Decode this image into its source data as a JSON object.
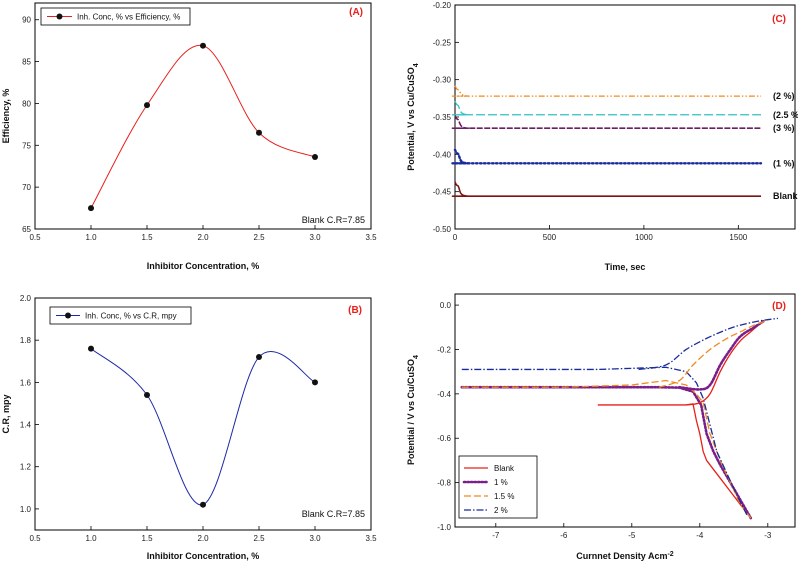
{
  "chart_data": [
    {
      "id": "A",
      "type": "line",
      "panel_label": "(A)",
      "xlabel": "Inhibitor Concentration, %",
      "ylabel": "Efficiency, %",
      "xlim": [
        0.5,
        3.5
      ],
      "ylim": [
        65,
        92
      ],
      "xticks": [
        0.5,
        1.0,
        1.5,
        2.0,
        2.5,
        3.0,
        3.5
      ],
      "xtick_labels": [
        "0.5",
        "1.0",
        "1.5",
        "2.0",
        "2.5",
        "3.0",
        "3.5"
      ],
      "yticks": [
        65,
        70,
        75,
        80,
        85,
        90
      ],
      "ytick_labels": [
        "65",
        "70",
        "75",
        "80",
        "85",
        "90"
      ],
      "series": [
        {
          "name": "Inh. Conc, % vs Efficiency, %",
          "color": "#e8201b",
          "x": [
            1.0,
            1.5,
            2.0,
            2.5,
            3.0
          ],
          "y": [
            67.5,
            79.8,
            86.9,
            76.5,
            73.6
          ]
        }
      ],
      "annotation": "Blank C.R=7.85"
    },
    {
      "id": "B",
      "type": "line",
      "panel_label": "(B)",
      "xlabel": "Inhibitor Concentration, %",
      "ylabel": "C.R, mpy",
      "xlim": [
        0.5,
        3.5
      ],
      "ylim": [
        0.9,
        2.0
      ],
      "xticks": [
        0.5,
        1.0,
        1.5,
        2.0,
        2.5,
        3.0,
        3.5
      ],
      "xtick_labels": [
        "0.5",
        "1.0",
        "1.5",
        "2.0",
        "2.5",
        "3.0",
        "3.5"
      ],
      "yticks": [
        1.0,
        1.2,
        1.4,
        1.6,
        1.8,
        2.0
      ],
      "ytick_labels": [
        "1.0",
        "1.2",
        "1.4",
        "1.6",
        "1.8",
        "2.0"
      ],
      "series": [
        {
          "name": "Inh. Conc, % vs C.R, mpy",
          "color": "#1c2aa6",
          "x": [
            1.0,
            1.5,
            2.0,
            2.5,
            3.0
          ],
          "y": [
            1.76,
            1.54,
            1.02,
            1.72,
            1.6
          ]
        }
      ],
      "annotation": "Blank C.R=7.85"
    },
    {
      "id": "C",
      "type": "line",
      "panel_label": "(C)",
      "xlabel": "Time, sec",
      "ylabel_pre": "Potential, V vs Cu/CuSO",
      "ylabel_sub": "4",
      "xlim": [
        0,
        1800
      ],
      "ylim": [
        -0.5,
        -0.2
      ],
      "xticks": [
        0,
        500,
        1000,
        1500
      ],
      "xtick_labels": [
        "0",
        "500",
        "1000",
        "1500"
      ],
      "yticks": [
        -0.5,
        -0.45,
        -0.4,
        -0.35,
        -0.3,
        -0.25,
        -0.2
      ],
      "ytick_labels": [
        "-0.50",
        "-0.45",
        "-0.40",
        "-0.35",
        "-0.30",
        "-0.25",
        "-0.20"
      ],
      "series": [
        {
          "name": "(2 %)",
          "color": "#f08a1c",
          "dash": "6,2,1.5,2,1.5,2",
          "width": 1.3,
          "x_end": 1620,
          "start": -0.312,
          "steady": -0.322
        },
        {
          "name": "(2.5 %)",
          "color": "#2ec3c3",
          "dash": "9,3",
          "width": 1.3,
          "x_end": 1620,
          "start": -0.333,
          "steady": -0.347
        },
        {
          "name": "(3 %)",
          "color": "#6b1f63",
          "dash": "6,1.5",
          "width": 1.6,
          "x_end": 1620,
          "start": -0.352,
          "steady": -0.365
        },
        {
          "name": "(1 %)",
          "color": "#1a2b9c",
          "dash": "1.6,2.4",
          "width": 2.4,
          "x_end": 1620,
          "start": -0.398,
          "steady": -0.412
        },
        {
          "name": "Blank",
          "color": "#7a1515",
          "dash": "",
          "width": 1.6,
          "x_end": 1620,
          "start": -0.441,
          "steady": -0.456
        }
      ]
    },
    {
      "id": "D",
      "type": "line",
      "panel_label": "(D)",
      "xlabel_pre": "Curnnet Density Acm",
      "xlabel_sup": "-2",
      "ylabel_pre": "Potential / V vs Cu/CuSO",
      "ylabel_sub": "4",
      "xlim": [
        -7.6,
        -2.6
      ],
      "ylim": [
        -1.0,
        0.05
      ],
      "xticks": [
        -7,
        -6,
        -5,
        -4,
        -3
      ],
      "xtick_labels": [
        "-7",
        "-6",
        "-5",
        "-4",
        "-3"
      ],
      "yticks": [
        -1.0,
        -0.8,
        -0.6,
        -0.4,
        -0.2,
        0.0
      ],
      "ytick_labels": [
        "-1.0",
        "-0.8",
        "-0.6",
        "-0.4",
        "-0.2",
        "0.0"
      ],
      "series": [
        {
          "name": "Blank",
          "color": "#e8201b",
          "dash": "",
          "width": 1.3,
          "x": [
            -5.5,
            -4.5,
            -4.2,
            -4.1,
            -4.05,
            -4.0,
            -3.95,
            -3.9,
            -3.8,
            -3.7,
            -3.55,
            -3.4,
            -3.25
          ],
          "y": [
            -0.45,
            -0.45,
            -0.45,
            -0.445,
            -0.52,
            -0.58,
            -0.66,
            -0.7,
            -0.74,
            -0.78,
            -0.84,
            -0.9,
            -0.96
          ]
        },
        {
          "name": "1 %",
          "color": "#7a1f8a",
          "dash": "1.5,2",
          "width": 2.6,
          "x": [
            -7.5,
            -6.0,
            -5.0,
            -4.6,
            -4.3,
            -4.1,
            -3.98,
            -3.95,
            -3.9,
            -3.8,
            -3.7,
            -3.55,
            -3.4,
            -3.25
          ],
          "y": [
            -0.37,
            -0.37,
            -0.37,
            -0.37,
            -0.372,
            -0.39,
            -0.45,
            -0.5,
            -0.58,
            -0.66,
            -0.72,
            -0.8,
            -0.88,
            -0.96
          ]
        },
        {
          "name": "1.5 %",
          "color": "#f08a1c",
          "dash": "7,3",
          "width": 1.3,
          "x": [
            -7.5,
            -6.0,
            -5.0,
            -4.5,
            -4.2,
            -4.05,
            -3.95,
            -3.85,
            -3.7,
            -3.55,
            -3.4,
            -3.25
          ],
          "y": [
            -0.37,
            -0.37,
            -0.36,
            -0.34,
            -0.36,
            -0.4,
            -0.44,
            -0.58,
            -0.7,
            -0.8,
            -0.9,
            -0.96
          ]
        },
        {
          "name": "2 %",
          "color": "#1a2b9c",
          "dash": "7,2,1.5,2",
          "width": 1.3,
          "x": [
            -7.5,
            -6.5,
            -5.5,
            -4.5,
            -4.2,
            -4.05,
            -3.95,
            -3.85,
            -3.75,
            -3.6,
            -3.45,
            -3.3
          ],
          "y": [
            -0.29,
            -0.29,
            -0.29,
            -0.28,
            -0.3,
            -0.35,
            -0.42,
            -0.54,
            -0.66,
            -0.76,
            -0.86,
            -0.95
          ]
        }
      ],
      "anodic_branches": [
        {
          "series": "Blank",
          "x": [
            -4.2,
            -4.0,
            -3.85,
            -3.7,
            -3.55,
            -3.4,
            -3.25,
            -3.1
          ],
          "y": [
            -0.45,
            -0.44,
            -0.4,
            -0.3,
            -0.22,
            -0.16,
            -0.12,
            -0.08
          ]
        },
        {
          "series": "1 %",
          "x": [
            -4.3,
            -4.0,
            -3.85,
            -3.7,
            -3.55,
            -3.4,
            -3.2,
            -3.05
          ],
          "y": [
            -0.37,
            -0.38,
            -0.36,
            -0.27,
            -0.2,
            -0.14,
            -0.1,
            -0.07
          ]
        },
        {
          "series": "1.5 %",
          "x": [
            -4.6,
            -4.3,
            -4.1,
            -3.85,
            -3.6,
            -3.4,
            -3.2,
            -3.0
          ],
          "y": [
            -0.37,
            -0.34,
            -0.27,
            -0.2,
            -0.15,
            -0.12,
            -0.09,
            -0.07
          ]
        },
        {
          "series": "2 %",
          "x": [
            -4.9,
            -4.5,
            -4.2,
            -3.9,
            -3.6,
            -3.4,
            -3.1,
            -2.85
          ],
          "y": [
            -0.29,
            -0.27,
            -0.2,
            -0.15,
            -0.11,
            -0.09,
            -0.07,
            -0.06
          ]
        }
      ]
    }
  ]
}
